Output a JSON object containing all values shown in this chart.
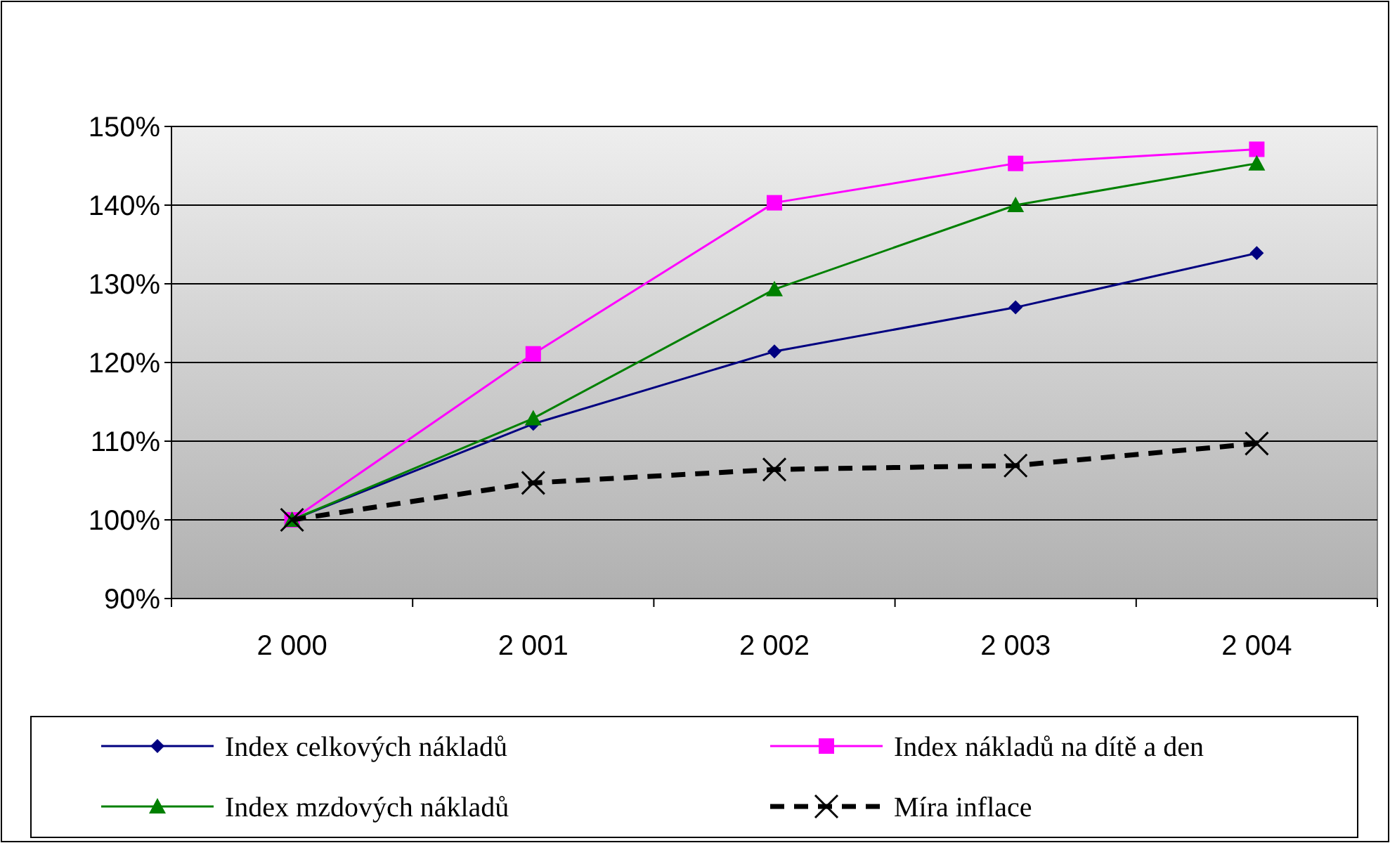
{
  "chart_data": {
    "type": "line",
    "categories": [
      "2 000",
      "2 001",
      "2 002",
      "2 003",
      "2 004"
    ],
    "series": [
      {
        "name": "Index celkových nákladů",
        "color": "#000080",
        "marker": "diamond",
        "line_style": "solid",
        "values": [
          100,
          112.2,
          121.4,
          127.0,
          133.9
        ]
      },
      {
        "name": "Index nákladů na dítě a den",
        "color": "#ff00ff",
        "marker": "square",
        "line_style": "solid",
        "values": [
          100,
          121.1,
          140.3,
          145.3,
          147.1
        ]
      },
      {
        "name": "Index mzdových nákladů",
        "color": "#008000",
        "marker": "triangle",
        "line_style": "solid",
        "values": [
          100,
          112.9,
          129.3,
          140.0,
          145.3
        ]
      },
      {
        "name": "Míra inflace",
        "color": "#000000",
        "marker": "cross",
        "line_style": "dashed",
        "values": [
          100,
          104.7,
          106.4,
          106.9,
          109.7
        ]
      }
    ],
    "ylim": [
      90,
      150
    ],
    "yticks": [
      {
        "value": 90,
        "label": "90%"
      },
      {
        "value": 100,
        "label": "100%"
      },
      {
        "value": 110,
        "label": "110%"
      },
      {
        "value": 120,
        "label": "120%"
      },
      {
        "value": 130,
        "label": "130%"
      },
      {
        "value": 140,
        "label": "140%"
      },
      {
        "value": 150,
        "label": "150%"
      }
    ],
    "grid": "y",
    "legend": "bottom"
  }
}
